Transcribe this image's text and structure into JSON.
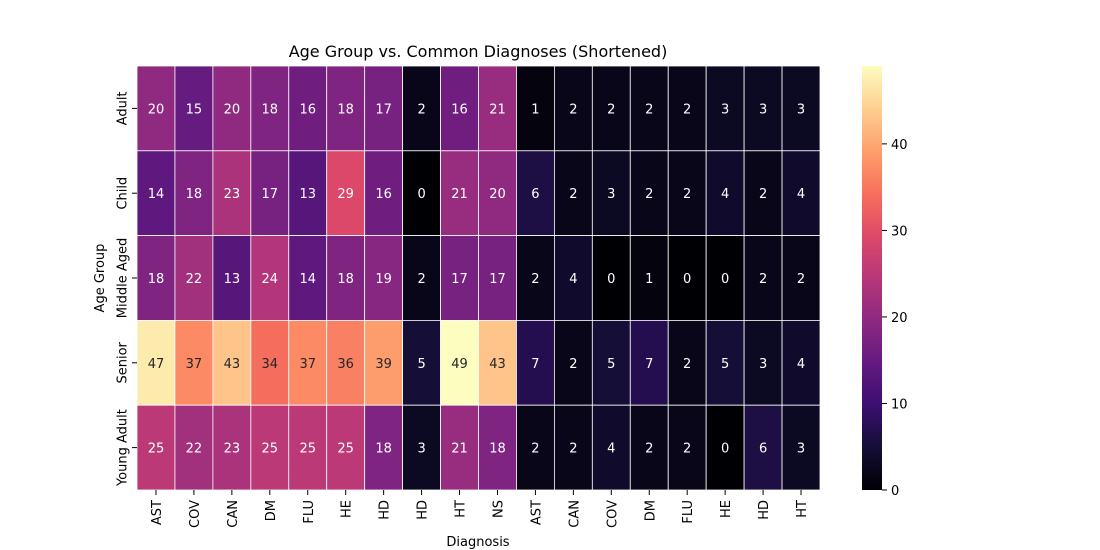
{
  "chart_data": {
    "type": "heatmap",
    "title": "Age Group vs. Common Diagnoses (Shortened)",
    "xlabel": "Diagnosis",
    "ylabel": "Age Group",
    "x_categories": [
      "AST",
      "COV",
      "CAN",
      "DM",
      "FLU",
      "HE",
      "HD",
      "HD",
      "HT",
      "NS",
      "AST",
      "CAN",
      "COV",
      "DM",
      "FLU",
      "HE",
      "HD",
      "HT"
    ],
    "y_categories": [
      "Adult",
      "Child",
      "Middle Aged",
      "Senior",
      "Young Adult"
    ],
    "values": [
      [
        20,
        15,
        20,
        18,
        16,
        18,
        17,
        2,
        16,
        21,
        1,
        2,
        2,
        2,
        2,
        3,
        3,
        3
      ],
      [
        14,
        18,
        23,
        17,
        13,
        29,
        16,
        0,
        21,
        20,
        6,
        2,
        3,
        2,
        2,
        4,
        2,
        4
      ],
      [
        18,
        22,
        13,
        24,
        14,
        18,
        19,
        2,
        17,
        17,
        2,
        4,
        0,
        1,
        0,
        0,
        2,
        2
      ],
      [
        47,
        37,
        43,
        34,
        37,
        36,
        39,
        5,
        49,
        43,
        7,
        2,
        5,
        7,
        2,
        5,
        3,
        4
      ],
      [
        25,
        22,
        23,
        25,
        25,
        25,
        18,
        3,
        21,
        18,
        2,
        2,
        4,
        2,
        2,
        0,
        6,
        3
      ]
    ],
    "colormap": "magma",
    "vmin": 0,
    "vmax": 49,
    "colorbar_ticks": [
      0,
      10,
      20,
      30,
      40
    ],
    "annotations": true
  }
}
